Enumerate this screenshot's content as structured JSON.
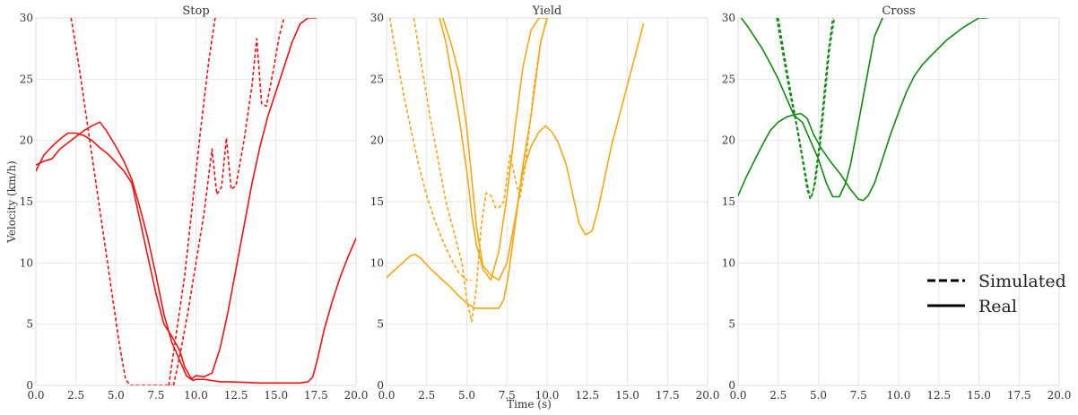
{
  "chart_data": {
    "type": "line",
    "xlabel": "Time (s)",
    "ylabel": "Velocity (km/h)",
    "xlim": [
      0,
      20
    ],
    "ylim": [
      0,
      30
    ],
    "xticks": [
      0.0,
      2.5,
      5.0,
      7.5,
      10.0,
      12.5,
      15.0,
      17.5,
      20.0
    ],
    "xtick_labels": [
      "0.0",
      "2.5",
      "5.0",
      "7.5",
      "10.0",
      "12.5",
      "15.0",
      "17.5",
      "20.0"
    ],
    "yticks": [
      0,
      5,
      10,
      15,
      20,
      25,
      30
    ],
    "ytick_labels": [
      "0",
      "5",
      "10",
      "15",
      "20",
      "25",
      "30"
    ],
    "grid": true,
    "legend": {
      "placement": "lower-right of third panel",
      "entries": [
        {
          "label": "Simulated",
          "style": "dashed"
        },
        {
          "label": "Real",
          "style": "solid"
        }
      ]
    },
    "panels": [
      {
        "title": "Stop",
        "color": "#ee1111",
        "series": [
          {
            "style": "dashed",
            "x": [
              2.2,
              2.7,
              3.2,
              3.7,
              4.2,
              4.7,
              5.2,
              5.6,
              5.9,
              6.2,
              7.0,
              8.0,
              8.5
            ],
            "y": [
              30,
              26,
              21.5,
              17,
              12.5,
              8,
              3.5,
              0.5,
              0,
              0,
              0,
              0,
              0
            ]
          },
          {
            "style": "dashed",
            "x": [
              8.3,
              8.8,
              9.3,
              9.8,
              10.3,
              10.8,
              11.2
            ],
            "y": [
              0,
              4.5,
              9,
              15,
              21,
              26.5,
              30
            ]
          },
          {
            "style": "dashed",
            "x": [
              8.6,
              9.0,
              9.5,
              10.0,
              10.5,
              11.0,
              11.3,
              11.6,
              11.9,
              12.2,
              12.5,
              13.0,
              13.5,
              13.8,
              14.1,
              14.4,
              14.8,
              15.2,
              15.5
            ],
            "y": [
              0,
              2.5,
              6,
              10,
              14,
              19.3,
              15.6,
              16.2,
              20.2,
              16,
              16.3,
              20,
              24.5,
              28.3,
              23,
              22.8,
              25.5,
              28.5,
              30
            ]
          },
          {
            "style": "solid",
            "x": [
              0,
              0.5,
              1.0,
              1.5,
              2.0,
              2.5,
              3.0,
              3.5,
              4.0,
              4.4,
              5.0,
              5.5,
              6.0,
              6.5,
              7.0,
              7.5,
              8.0,
              8.5,
              9.0,
              9.4,
              9.7,
              10.0,
              10.5,
              11.0,
              11.5,
              12.0,
              12.5,
              13.0,
              13.5,
              14.0,
              14.5,
              15.0,
              15.5,
              16.0,
              16.5,
              17.0,
              17.5
            ],
            "y": [
              18,
              18.3,
              18.5,
              19.3,
              19.8,
              20.3,
              20.8,
              21.2,
              21.5,
              20.8,
              19.5,
              18.3,
              16.8,
              14.5,
              12,
              9,
              5.8,
              3.5,
              2,
              0.8,
              0.5,
              0.8,
              0.7,
              1,
              3,
              6,
              9.5,
              13,
              16.5,
              19.5,
              22,
              24,
              26,
              28,
              29.5,
              30,
              30
            ]
          },
          {
            "style": "solid",
            "x": [
              0,
              0.5,
              1.0,
              1.5,
              2.0,
              2.5,
              3.0,
              3.5,
              4.0,
              4.5,
              5.0,
              5.5,
              6.0,
              6.5,
              7.0,
              7.5,
              8.0,
              8.5,
              9.0,
              9.3,
              9.6,
              9.8,
              10.0,
              10.5,
              11.0,
              11.5,
              12.0,
              13.0,
              14.0,
              15.0,
              16.0,
              16.5,
              17.0,
              17.3,
              17.6,
              18.0,
              18.5,
              19.0,
              19.5,
              20.0
            ],
            "y": [
              17.5,
              18.8,
              19.5,
              20.1,
              20.6,
              20.6,
              20.4,
              20,
              19.4,
              18.9,
              18.2,
              17.5,
              16.5,
              13.5,
              10.5,
              7.5,
              5,
              4,
              2.8,
              1.5,
              0.8,
              0.4,
              0.5,
              0.5,
              0.4,
              0.3,
              0.3,
              0.25,
              0.2,
              0.2,
              0.2,
              0.2,
              0.3,
              0.7,
              2.2,
              4.5,
              6.8,
              8.8,
              10.5,
              12
            ]
          }
        ]
      },
      {
        "title": "Yield",
        "color": "#f5a614",
        "series": [
          {
            "style": "dashed",
            "x": [
              0.2,
              0.6,
              1.0,
              1.5,
              2.0,
              2.5,
              3.0,
              3.5,
              4.0,
              4.5,
              5.0,
              5.3
            ],
            "y": [
              30,
              27,
              24.2,
              21,
              18,
              15.5,
              13.5,
              11.8,
              10.4,
              9.2,
              8.6,
              8.6
            ]
          },
          {
            "style": "dashed",
            "x": [
              1.7,
              2.2,
              2.7,
              3.2,
              3.7,
              4.2,
              4.7,
              5.0,
              5.3,
              5.6,
              5.9,
              6.2,
              6.5,
              6.8,
              7.0,
              7.3,
              7.7,
              8.0,
              8.3,
              8.6,
              8.9,
              9.2,
              9.6,
              10.0
            ],
            "y": [
              30,
              26,
              22,
              18.5,
              15,
              12.5,
              10,
              7,
              5.2,
              8,
              13,
              15.7,
              15.5,
              14.5,
              14.5,
              15,
              18.8,
              17,
              15.3,
              17.5,
              21,
              24.5,
              28,
              30
            ]
          },
          {
            "style": "solid",
            "x": [
              0,
              0.5,
              1.0,
              1.5,
              1.8,
              2.2,
              2.6,
              3.0,
              3.5,
              4.0,
              4.5,
              5.0,
              5.5,
              6.0,
              6.5,
              7.0,
              7.3,
              7.6,
              8.0,
              8.5,
              9.0,
              9.3,
              9.6,
              10.0
            ],
            "y": [
              8.8,
              9.4,
              10,
              10.6,
              10.7,
              10.3,
              9.7,
              9.2,
              8.6,
              8,
              7.3,
              6.7,
              6.3,
              6.3,
              6.3,
              6.3,
              7,
              9,
              13,
              18,
              22,
              25,
              28,
              30
            ]
          },
          {
            "style": "solid",
            "x": [
              3.5,
              4.0,
              4.5,
              5.0,
              5.3,
              5.6,
              6.0,
              6.5,
              7.0,
              7.5,
              8.0,
              8.5,
              9.0,
              9.5,
              9.9,
              10.3,
              10.7,
              11.2,
              11.7,
              12.0,
              12.4,
              12.8,
              13.2,
              13.6,
              14.0,
              14.5,
              15.0,
              15.5,
              16.0
            ],
            "y": [
              30,
              28,
              25.5,
              21,
              17,
              13,
              9.8,
              9,
              8.6,
              10,
              13.5,
              17.5,
              19.5,
              20.7,
              21.2,
              20.7,
              19.8,
              18,
              15,
              13.2,
              12.3,
              12.6,
              14.5,
              17,
              19.5,
              22,
              24.5,
              27,
              29.5
            ]
          },
          {
            "style": "solid",
            "x": [
              3.3,
              3.7,
              4.1,
              4.5,
              5.0,
              5.3,
              5.6,
              6.0,
              6.5,
              7.0,
              7.5,
              8.0,
              8.5,
              9.0,
              9.5,
              10.0
            ],
            "y": [
              30,
              28,
              25,
              22,
              17.5,
              14,
              11.5,
              9.5,
              8.6,
              11,
              15.5,
              21,
              26,
              29,
              30,
              30
            ]
          }
        ]
      },
      {
        "title": "Cross",
        "color": "#118811",
        "series": [
          {
            "style": "dashed",
            "x": [
              2.4,
              2.8,
              3.2,
              3.6,
              4.0,
              4.3,
              4.5,
              4.7,
              5.0,
              5.3,
              5.6,
              5.9
            ],
            "y": [
              30,
              27,
              24,
              21.5,
              18.5,
              16,
              15.2,
              16,
              19,
              23,
              27,
              30
            ]
          },
          {
            "style": "dashed",
            "x": [
              2.5,
              2.9,
              3.3,
              3.7,
              4.1,
              4.4,
              4.6,
              4.8,
              5.1,
              5.4,
              5.7,
              6.0
            ],
            "y": [
              30,
              26.8,
              23.8,
              21,
              18,
              15.8,
              15.5,
              16.5,
              19.5,
              23.5,
              27.5,
              30
            ]
          },
          {
            "style": "solid",
            "x": [
              0.2,
              0.6,
              1.0,
              1.5,
              2.0,
              2.5,
              3.0,
              3.5,
              4.0,
              4.5,
              5.0,
              5.5,
              5.9,
              6.3,
              6.7,
              7.0,
              7.5,
              8.0,
              8.5,
              9.0
            ],
            "y": [
              30,
              29.3,
              28.5,
              27.5,
              26.3,
              25,
              23.5,
              22,
              21.5,
              20,
              18.5,
              16.5,
              15.4,
              15.4,
              16.5,
              18,
              21.5,
              25,
              28.5,
              30
            ]
          },
          {
            "style": "solid",
            "x": [
              0,
              0.5,
              1.0,
              1.5,
              2.0,
              2.5,
              3.0,
              3.5,
              3.9,
              4.3,
              4.7,
              5.2,
              5.8,
              6.4,
              7.0,
              7.5,
              7.8,
              8.1,
              8.5,
              9.0,
              9.5,
              10.0,
              10.5,
              11.0,
              11.5,
              12.0,
              13.0,
              14.0,
              15.0,
              15.5
            ],
            "y": [
              15.5,
              17,
              18.3,
              19.6,
              20.8,
              21.5,
              21.9,
              22.1,
              22.2,
              21.8,
              20.5,
              19.3,
              18.2,
              17.2,
              16,
              15.2,
              15.1,
              15.5,
              16.5,
              18.5,
              20.5,
              22.3,
              24,
              25.3,
              26.2,
              26.9,
              28.2,
              29.2,
              30,
              30
            ]
          }
        ]
      }
    ]
  }
}
